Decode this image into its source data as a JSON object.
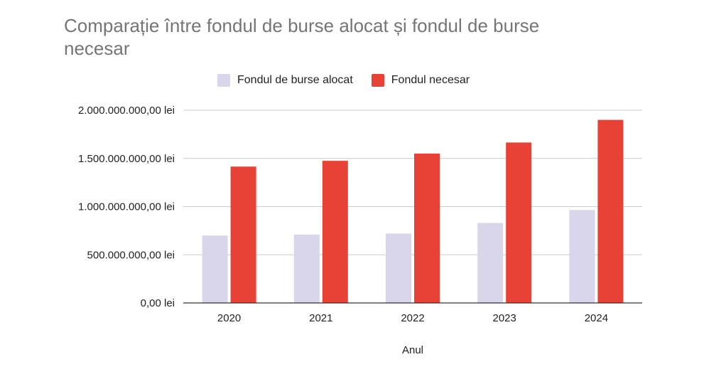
{
  "chart_data": {
    "type": "bar",
    "title": "Comparație între fondul de burse alocat și fondul de burse necesar",
    "xlabel": "Anul",
    "ylabel": "",
    "categories": [
      "2020",
      "2021",
      "2022",
      "2023",
      "2024"
    ],
    "series": [
      {
        "name": "Fondul de burse alocat",
        "color": "#d9d5ea",
        "values": [
          700000000,
          710000000,
          720000000,
          830000000,
          965000000
        ]
      },
      {
        "name": "Fondul necesar",
        "color": "#e84135",
        "values": [
          1415000000,
          1475000000,
          1550000000,
          1665000000,
          1900000000
        ]
      }
    ],
    "ylim": [
      0,
      2000000000
    ],
    "yticks": [
      0,
      500000000,
      1000000000,
      1500000000,
      2000000000
    ],
    "ytick_labels": [
      "0,00 lei",
      "500.000.000,00 lei",
      "1.000.000.000,00 lei",
      "1.500.000.000,00 lei",
      "2.000.000.000,00 lei"
    ],
    "grid": true,
    "legend_position": "top"
  }
}
